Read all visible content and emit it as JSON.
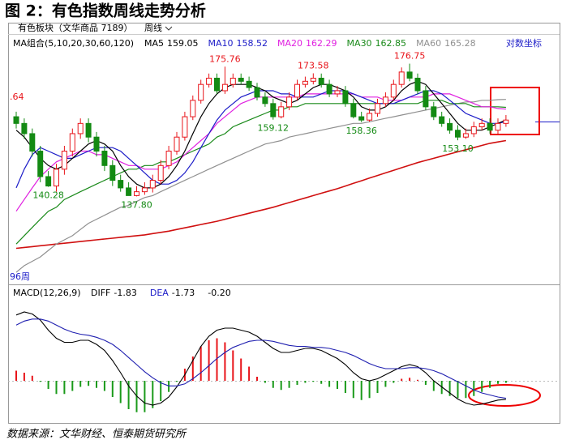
{
  "title": "图 2：有色指数周线走势分析",
  "toolbar": {
    "instrument": "有色板块（文华商品 7189）",
    "period": "周线"
  },
  "scale_label": "对数坐标",
  "source": "数据来源：文华财经、恒泰期货研究所",
  "chart_data": [
    {
      "type": "candlestick",
      "legend_title": "MA组合(5,10,20,30,60,120)",
      "log_scale": true,
      "ylim": [
        117,
        186
      ],
      "up_color": "#e8141a",
      "down_color": "#138a13",
      "edge_label": ".64",
      "period_label": "96周",
      "open": [
        160,
        158,
        155,
        150,
        143,
        140.5,
        145,
        150,
        155,
        158,
        154,
        150,
        146,
        142,
        140,
        138,
        139,
        140,
        142,
        146,
        150,
        154,
        160,
        165,
        170,
        172,
        168,
        170,
        172,
        171,
        169,
        166,
        164,
        160,
        163,
        166,
        170,
        171,
        172,
        170,
        167,
        168,
        164,
        160,
        159,
        161,
        164,
        166,
        170,
        174,
        172,
        168,
        163,
        160,
        158,
        156,
        154,
        155,
        157,
        158,
        156,
        158
      ],
      "high": [
        161.5,
        159.5,
        156.5,
        151.5,
        144.5,
        146.5,
        151.5,
        156.5,
        159.5,
        159.5,
        155.5,
        151.5,
        147.5,
        143.5,
        141.5,
        140.5,
        141.5,
        143.5,
        147.5,
        151.5,
        155.5,
        161.5,
        166.5,
        171.5,
        173.5,
        173.5,
        175.76,
        173.5,
        173.5,
        172.5,
        170.5,
        167.5,
        165.5,
        164.5,
        167.5,
        171.5,
        172.5,
        173.58,
        173.5,
        171.5,
        169.5,
        169.5,
        165.5,
        161.5,
        162.5,
        165.5,
        167.5,
        171.5,
        175.5,
        176.75,
        173.5,
        169.5,
        164.5,
        161.5,
        159.5,
        157.5,
        156.5,
        158.5,
        159.5,
        159.5,
        159.5,
        160.5
      ],
      "low": [
        156.5,
        153.5,
        148.5,
        141.5,
        140.28,
        139,
        143.5,
        148.5,
        153.5,
        152.5,
        148.5,
        144.5,
        140.5,
        139,
        138,
        137.8,
        138.2,
        138.8,
        141,
        145,
        149,
        153,
        159,
        164,
        169,
        167,
        167,
        169,
        170,
        168,
        165,
        163,
        159.12,
        159.5,
        162,
        165,
        169,
        170,
        169,
        166,
        166,
        163,
        159.5,
        158.36,
        158.5,
        160,
        163,
        165,
        169,
        171,
        167,
        162,
        159,
        157,
        155,
        153.1,
        153.5,
        154,
        156,
        155,
        155,
        157
      ],
      "close": [
        158,
        155,
        150,
        143,
        140.5,
        145,
        150,
        155,
        158,
        154,
        150,
        146,
        142,
        140,
        138,
        139,
        140,
        142,
        146,
        150,
        154,
        160,
        165,
        170,
        172,
        168,
        170,
        172,
        171,
        169,
        166,
        164,
        160,
        163,
        166,
        170,
        171,
        172,
        170,
        167,
        168,
        164,
        160,
        159,
        161,
        164,
        166,
        170,
        174,
        172,
        168,
        163,
        160,
        158,
        156,
        154,
        155,
        157,
        158,
        156,
        158,
        159
      ],
      "high_labels": [
        null,
        null,
        null,
        null,
        null,
        null,
        null,
        null,
        null,
        null,
        null,
        null,
        null,
        null,
        null,
        null,
        null,
        null,
        null,
        null,
        null,
        null,
        null,
        null,
        null,
        null,
        "175.76",
        null,
        null,
        null,
        null,
        null,
        null,
        null,
        null,
        null,
        null,
        "173.58",
        null,
        null,
        null,
        null,
        null,
        null,
        null,
        null,
        null,
        null,
        null,
        "176.75",
        null,
        null,
        null,
        null,
        null,
        null,
        null,
        null,
        null,
        null,
        null,
        null
      ],
      "low_labels": [
        null,
        null,
        null,
        null,
        "140.28",
        null,
        null,
        null,
        null,
        null,
        null,
        null,
        null,
        null,
        null,
        "137.80",
        null,
        null,
        null,
        null,
        null,
        null,
        null,
        null,
        null,
        null,
        null,
        null,
        null,
        null,
        null,
        null,
        "159.12",
        null,
        null,
        null,
        null,
        null,
        null,
        null,
        null,
        null,
        null,
        "158.36",
        null,
        null,
        null,
        null,
        null,
        null,
        null,
        null,
        null,
        null,
        null,
        "153.10",
        null,
        null,
        null,
        null,
        null,
        null
      ],
      "series": [
        {
          "name": "MA5",
          "color": "#000000",
          "values": [
            156,
            154,
            151,
            148,
            146,
            145,
            146,
            148,
            150,
            152,
            153,
            152,
            150,
            146,
            143,
            141,
            140,
            140,
            141,
            143,
            146,
            150,
            155,
            160,
            164,
            167,
            169,
            170,
            170,
            170,
            169,
            168,
            166,
            165,
            164,
            165,
            167,
            169,
            170,
            170,
            169,
            168,
            166,
            163,
            162,
            162,
            163,
            165,
            168,
            170,
            171,
            170,
            167,
            164,
            161,
            158,
            156,
            156,
            156,
            157,
            158,
            159.05
          ]
        },
        {
          "name": "MA10",
          "color": "#1c1cc8",
          "values": [
            140,
            145,
            149,
            151,
            150,
            149,
            148,
            148,
            149,
            150,
            151,
            151,
            151,
            150,
            148,
            146,
            144,
            142,
            141,
            141,
            142,
            144,
            147,
            151,
            155,
            159,
            162,
            164,
            166,
            167,
            168,
            168,
            168,
            167,
            167,
            166,
            166,
            166,
            167,
            168,
            168,
            168,
            167,
            166,
            165,
            164,
            164,
            164,
            165,
            166,
            167,
            168,
            168,
            167,
            165,
            163,
            161,
            160,
            159,
            158,
            158,
            158.52
          ]
        },
        {
          "name": "MA20",
          "color": "#e020e0",
          "values": [
            134,
            137,
            140,
            143,
            145,
            147,
            148,
            149,
            150,
            150,
            149,
            149,
            148,
            147,
            146,
            146,
            145,
            145,
            145,
            146,
            147,
            149,
            151,
            153,
            155,
            158,
            160,
            162,
            164,
            165,
            166,
            166,
            166,
            166,
            166,
            166,
            167,
            167,
            167,
            167,
            167,
            167,
            167,
            166,
            166,
            166,
            165,
            165,
            165,
            166,
            166,
            166,
            167,
            167,
            167,
            166,
            165,
            164,
            163,
            163,
            162.5,
            162.29
          ]
        },
        {
          "name": "MA30",
          "color": "#1a8a1a",
          "values": [
            126,
            128,
            130,
            132,
            134,
            135,
            137,
            138,
            139,
            140,
            141,
            142,
            143,
            144,
            145,
            145,
            146,
            146,
            147,
            147,
            148,
            149,
            150,
            151,
            152,
            154,
            155,
            157,
            158,
            159,
            160,
            161,
            162,
            162,
            163,
            163,
            164,
            164,
            164,
            164,
            164,
            164,
            164,
            164,
            164,
            164,
            164,
            164,
            164,
            164,
            164,
            165,
            165,
            165,
            164,
            164,
            164,
            163,
            163,
            163,
            163,
            162.85
          ]
        },
        {
          "name": "MA60",
          "color": "#909090",
          "values": [
            119.5,
            121,
            122,
            123,
            124.5,
            126,
            127,
            128,
            129.5,
            131,
            132,
            133,
            134,
            135,
            135.5,
            136.5,
            137.5,
            138,
            139,
            140,
            141,
            142,
            143,
            144,
            145,
            146,
            147,
            148,
            149,
            150,
            151,
            152,
            152.5,
            153,
            154,
            154.5,
            155,
            155.5,
            156,
            156.5,
            157,
            157.5,
            158,
            158,
            158.5,
            159,
            159.5,
            160,
            160.5,
            161,
            161.5,
            162,
            162.5,
            163,
            163.5,
            164,
            164.5,
            164.5,
            165,
            165,
            165.2,
            165.28
          ]
        }
      ],
      "ma120": {
        "color": "#d01010",
        "values": [
          125,
          125.2,
          125.4,
          125.6,
          125.8,
          126,
          126.2,
          126.4,
          126.6,
          126.8,
          127,
          127.2,
          127.4,
          127.6,
          127.8,
          128,
          128.2,
          128.5,
          128.8,
          129.1,
          129.5,
          129.9,
          130.3,
          130.7,
          131.1,
          131.5,
          132,
          132.5,
          133,
          133.5,
          134,
          134.5,
          135,
          135.6,
          136.2,
          136.8,
          137.4,
          138,
          138.6,
          139.2,
          139.8,
          140.5,
          141.2,
          141.9,
          142.6,
          143.3,
          144,
          144.7,
          145.4,
          146.1,
          146.8,
          147.4,
          148,
          148.6,
          149.2,
          149.8,
          150.4,
          151,
          151.6,
          152.2,
          152.6,
          153
        ]
      }
    },
    {
      "type": "macd",
      "title": "MACD(12,26,9)",
      "ylim": [
        -4,
        8
      ],
      "series": [
        {
          "name": "DIFF",
          "color": "#000000",
          "values": [
            6.5,
            6.8,
            6.6,
            6.0,
            5.0,
            4.2,
            3.8,
            3.8,
            4.0,
            4.0,
            3.6,
            3.0,
            2.0,
            0.8,
            -0.5,
            -1.5,
            -2.2,
            -2.4,
            -2.2,
            -1.6,
            -0.6,
            0.6,
            2.0,
            3.4,
            4.4,
            5.0,
            5.2,
            5.2,
            5.0,
            4.8,
            4.4,
            3.8,
            3.2,
            2.8,
            2.8,
            3.0,
            3.2,
            3.2,
            3.0,
            2.6,
            2.2,
            1.6,
            0.8,
            0.2,
            0.0,
            0.2,
            0.6,
            1.0,
            1.4,
            1.6,
            1.4,
            0.8,
            0.0,
            -0.6,
            -1.2,
            -1.8,
            -2.2,
            -2.4,
            -2.3,
            -2.1,
            -1.9,
            -1.83
          ]
        },
        {
          "name": "DEA",
          "color": "#1f1fb0",
          "values": [
            5.5,
            5.9,
            6.1,
            6.1,
            5.9,
            5.5,
            5.1,
            4.8,
            4.6,
            4.5,
            4.3,
            4.0,
            3.6,
            3.0,
            2.3,
            1.6,
            0.9,
            0.3,
            -0.2,
            -0.5,
            -0.5,
            -0.3,
            0.2,
            0.8,
            1.5,
            2.2,
            2.8,
            3.3,
            3.6,
            3.9,
            4.0,
            4.0,
            3.9,
            3.7,
            3.5,
            3.4,
            3.4,
            3.3,
            3.3,
            3.2,
            3.0,
            2.8,
            2.5,
            2.1,
            1.7,
            1.4,
            1.2,
            1.2,
            1.2,
            1.3,
            1.3,
            1.2,
            1.0,
            0.7,
            0.3,
            -0.1,
            -0.5,
            -0.9,
            -1.2,
            -1.4,
            -1.6,
            -1.73
          ]
        }
      ],
      "histogram": {
        "up_color": "#e8141a",
        "down_color": "#1a9a1a",
        "values": [
          1.0,
          0.8,
          0.5,
          -0.1,
          -0.8,
          -1.3,
          -1.3,
          -1.0,
          -0.6,
          -0.5,
          -0.7,
          -1.0,
          -1.6,
          -2.2,
          -2.8,
          -3.1,
          -3.1,
          -2.7,
          -2.0,
          -1.1,
          -0.1,
          1.2,
          2.4,
          3.4,
          4.0,
          4.2,
          3.8,
          3.0,
          2.2,
          1.4,
          0.4,
          -0.2,
          -0.7,
          -0.9,
          -0.7,
          -0.4,
          -0.2,
          -0.1,
          -0.3,
          -0.6,
          -0.8,
          -1.2,
          -1.7,
          -1.9,
          -1.7,
          -1.2,
          -0.6,
          -0.2,
          0.2,
          0.3,
          0.1,
          -0.4,
          -1.0,
          -1.3,
          -1.5,
          -1.7,
          -1.7,
          -1.5,
          -1.1,
          -0.7,
          -0.3,
          -0.2
        ],
        "value_labels": [
          null,
          null,
          null,
          null,
          null,
          null,
          null,
          null,
          null,
          null,
          null,
          null,
          null,
          null,
          null,
          null,
          null,
          null,
          null,
          null,
          null,
          null,
          null,
          null,
          null,
          null,
          null,
          null,
          null,
          null,
          null,
          null,
          null,
          null,
          null,
          null,
          null,
          null,
          null,
          null,
          null,
          null,
          null,
          null,
          null,
          null,
          null,
          null,
          null,
          null,
          null,
          null,
          null,
          null,
          null,
          null,
          null,
          null,
          null,
          null,
          null,
          "-0.20"
        ]
      }
    }
  ]
}
